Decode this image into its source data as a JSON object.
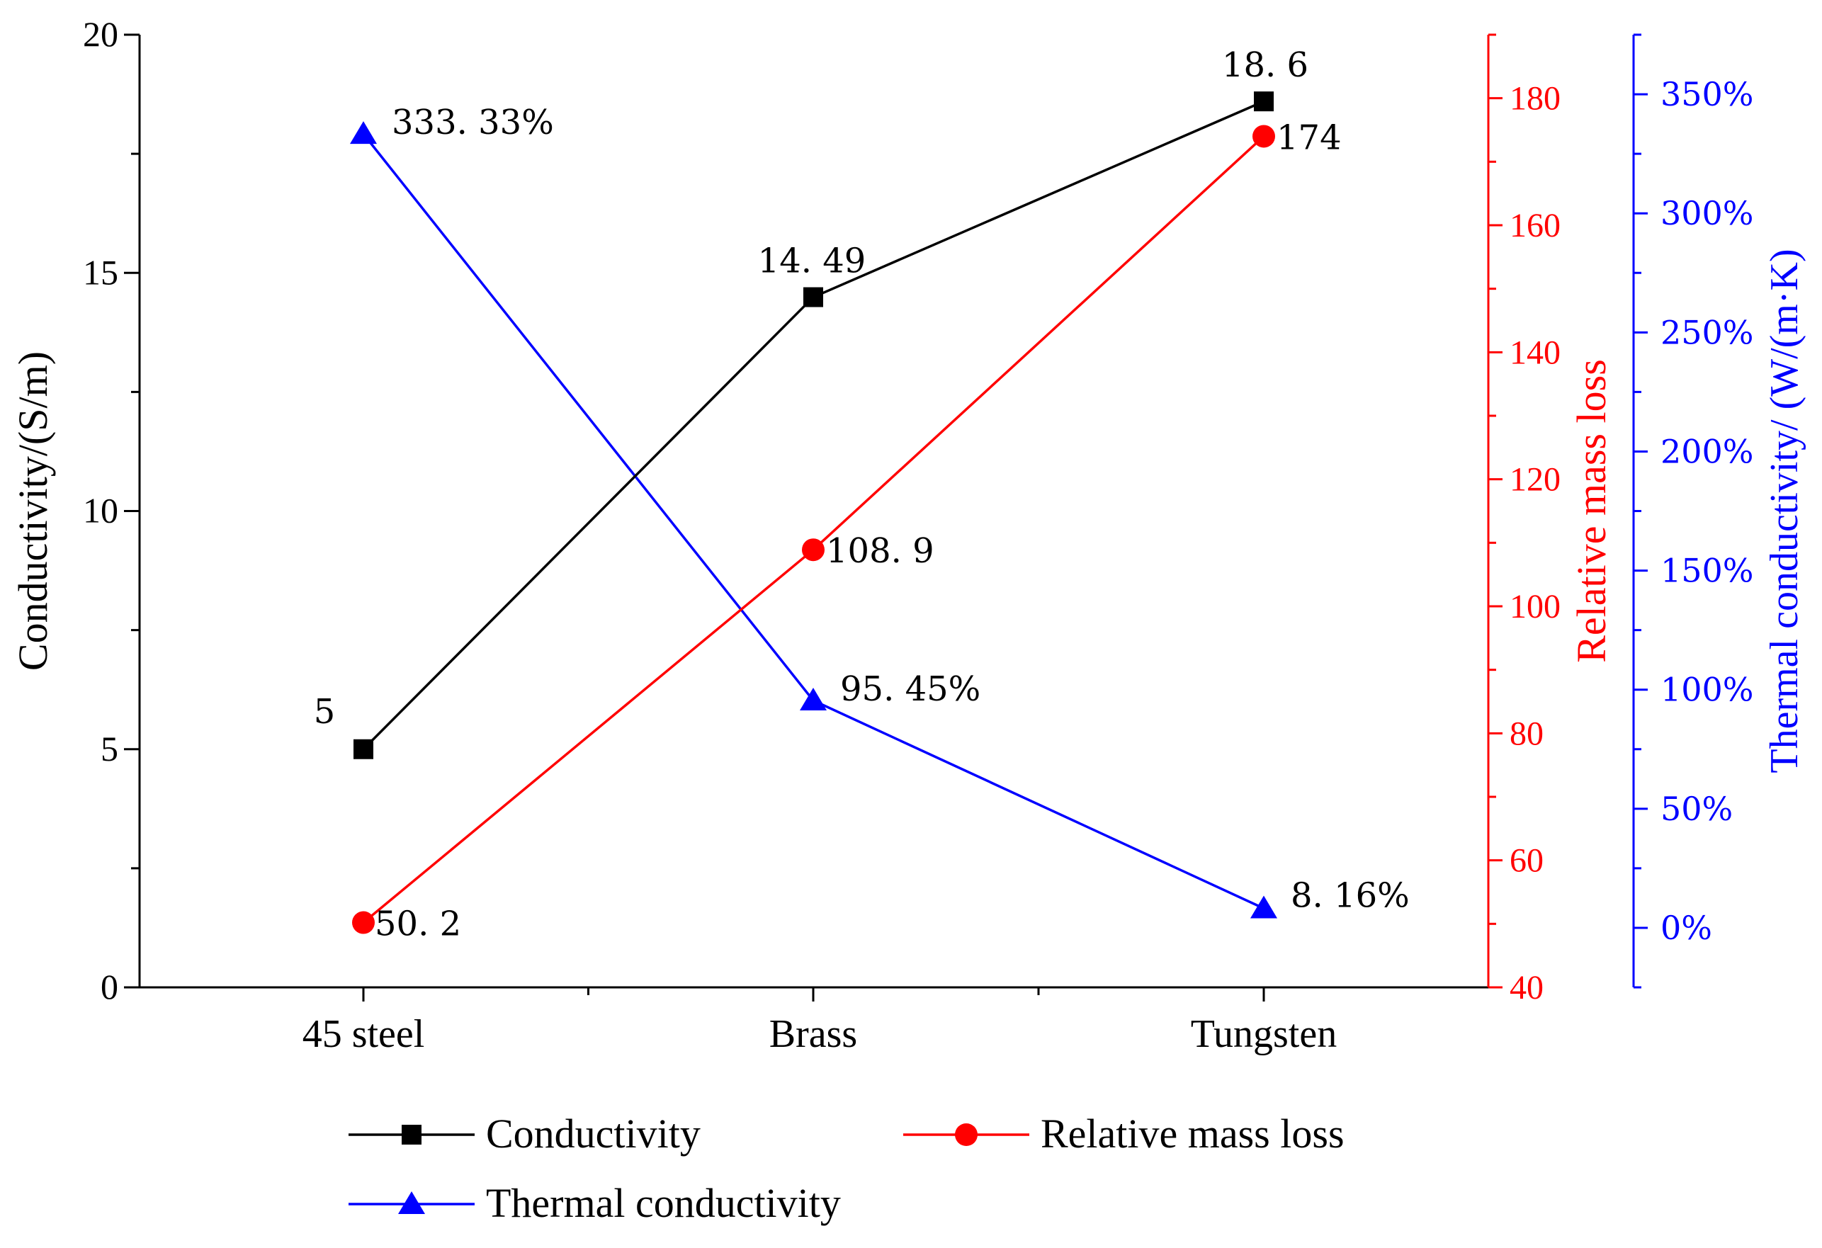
{
  "chart_data": {
    "type": "line",
    "categories": [
      "45 steel",
      "Brass",
      "Tungsten"
    ],
    "series": [
      {
        "name": "Conductivity",
        "axis": "left",
        "color": "#000000",
        "marker": "square",
        "values": [
          5,
          14.49,
          18.6
        ],
        "labels": [
          "5",
          "14. 49",
          "18. 6"
        ]
      },
      {
        "name": "Relative mass loss",
        "axis": "right",
        "color": "#ff0000",
        "marker": "circle",
        "values": [
          50.2,
          108.9,
          174
        ],
        "labels": [
          "50. 2",
          "108. 9",
          "174"
        ]
      },
      {
        "name": "Thermal conductivity",
        "axis": "right2",
        "color": "#0000ff",
        "marker": "triangle",
        "values": [
          333.33,
          95.45,
          8.16
        ],
        "labels": [
          "333. 33%",
          "95. 45%",
          "8. 16%"
        ]
      }
    ],
    "axes": {
      "left": {
        "label": "Conductivity/(S/m)",
        "range": [
          0,
          20
        ],
        "ticks": [
          0,
          5,
          10,
          15,
          20
        ],
        "tick_labels": [
          "0",
          "5",
          "10",
          "15",
          "20"
        ],
        "color": "#000000"
      },
      "right": {
        "label": "Relative mass loss",
        "range": [
          40,
          190
        ],
        "ticks": [
          40,
          60,
          80,
          100,
          120,
          140,
          160,
          180
        ],
        "tick_labels": [
          "40",
          "60",
          "80",
          "100",
          "120",
          "140",
          "160",
          "180"
        ],
        "color": "#ff0000"
      },
      "right2": {
        "label": "Thermal conductivity/ (W/(m·K)",
        "range": [
          -25,
          375
        ],
        "ticks": [
          0,
          50,
          100,
          150,
          200,
          250,
          300,
          350
        ],
        "tick_labels": [
          "0%",
          "50%",
          "100%",
          "150%",
          "200%",
          "250%",
          "300%",
          "350%"
        ],
        "color": "#0000ff"
      }
    },
    "legend": {
      "placement": "bottom",
      "entries": [
        "Conductivity",
        "Relative mass loss",
        "Thermal conductivity"
      ]
    }
  }
}
